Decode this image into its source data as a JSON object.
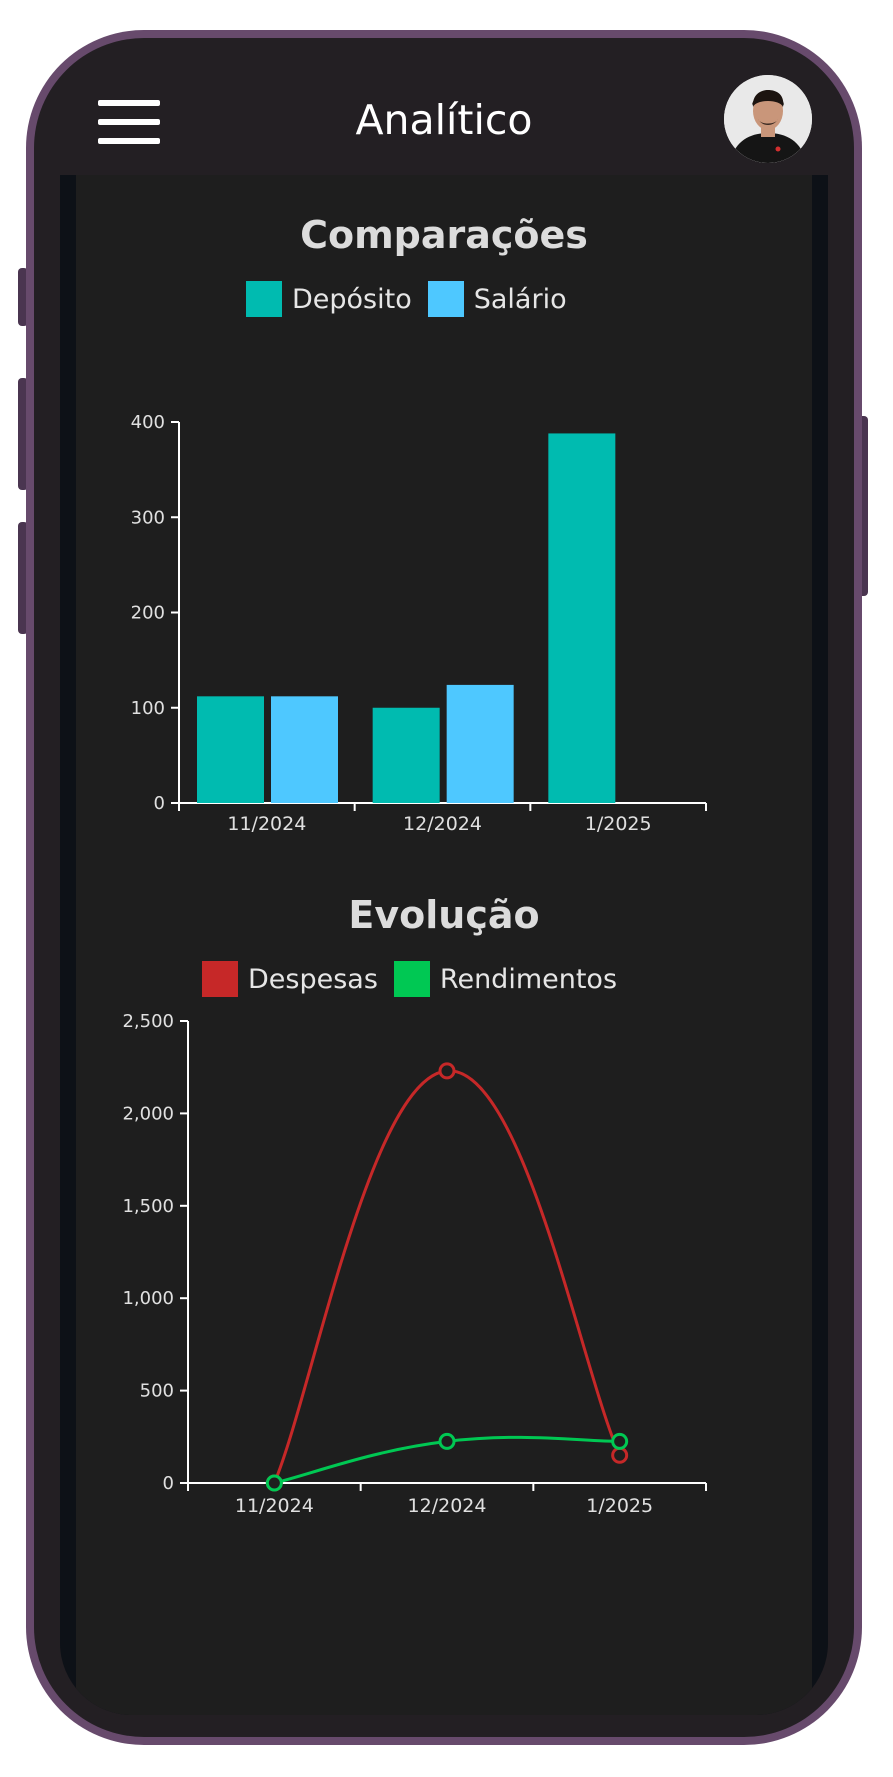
{
  "header": {
    "title": "Analítico",
    "menu_icon": "hamburger-menu-icon",
    "avatar_icon": "user-avatar"
  },
  "colors": {
    "frame": "#674a6c",
    "screen": "#1e1e1e",
    "deposito": "#00bbb0",
    "salario": "#4ec8ff",
    "despesas": "#c62828",
    "rendimentos": "#00c853"
  },
  "chart_data": [
    {
      "type": "bar",
      "title": "Comparações",
      "categories": [
        "11/2024",
        "12/2024",
        "1/2025"
      ],
      "series": [
        {
          "name": "Depósito",
          "values": [
            112,
            100,
            388
          ]
        },
        {
          "name": "Salário",
          "values": [
            112,
            124,
            null
          ]
        }
      ],
      "yticks": [
        "0",
        "100",
        "200",
        "300",
        "400"
      ],
      "ylim": [
        0,
        400
      ],
      "legend": "top-center",
      "grid": false
    },
    {
      "type": "line",
      "title": "Evolução",
      "categories": [
        "11/2024",
        "12/2024",
        "1/2025"
      ],
      "series": [
        {
          "name": "Despesas",
          "values": [
            0,
            2230,
            150
          ]
        },
        {
          "name": "Rendimentos",
          "values": [
            0,
            225,
            225
          ]
        }
      ],
      "yticks": [
        "0",
        "500",
        "1,000",
        "1,500",
        "2,000",
        "2,500"
      ],
      "ylim": [
        0,
        2500
      ],
      "legend": "top-center",
      "grid": false
    }
  ]
}
